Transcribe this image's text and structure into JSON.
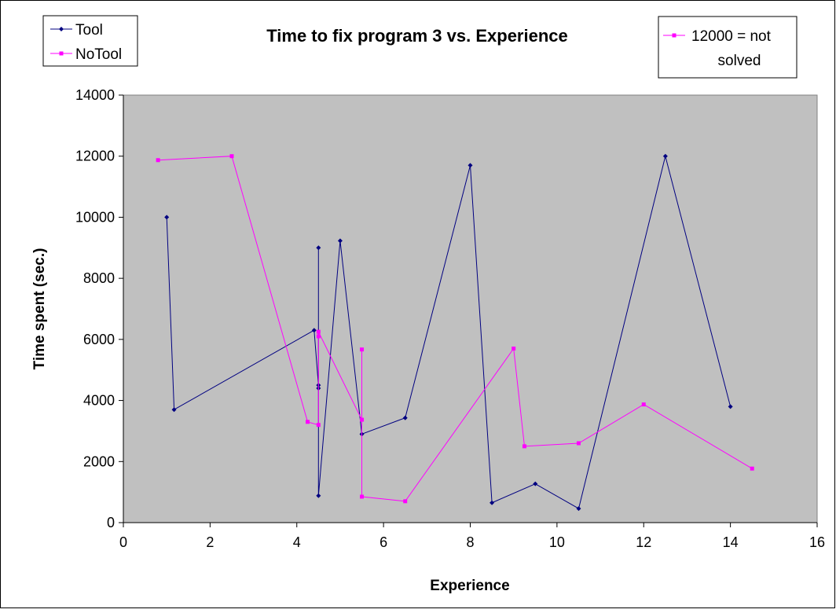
{
  "chart_data": {
    "type": "line",
    "title": "Time to fix program 3 vs. Experience",
    "xlabel": "Experience",
    "ylabel": "Time spent (sec.)",
    "xlim": [
      0,
      16
    ],
    "ylim": [
      0,
      14000
    ],
    "xticks": [
      "0",
      "2",
      "4",
      "6",
      "8",
      "10",
      "12",
      "14",
      "16"
    ],
    "yticks": [
      "0",
      "2000",
      "4000",
      "6000",
      "8000",
      "10000",
      "12000",
      "14000"
    ],
    "grid": false,
    "plot_background": "#c0c0c0",
    "legend_position": "top-left",
    "annotation": {
      "line1": "12000 = not",
      "line2": "solved",
      "position": "top-right"
    },
    "series": [
      {
        "name": "Tool",
        "color": "#000080",
        "marker": "diamond",
        "points": [
          [
            1.0,
            10000
          ],
          [
            1.17,
            3700
          ],
          [
            4.4,
            6300
          ],
          [
            4.5,
            4500
          ],
          [
            4.5,
            9000
          ],
          [
            4.5,
            4400
          ],
          [
            4.5,
            880
          ],
          [
            5.0,
            9230
          ],
          [
            5.5,
            2900
          ],
          [
            6.5,
            3430
          ],
          [
            8.0,
            11700
          ],
          [
            8.5,
            650
          ],
          [
            9.5,
            1270
          ],
          [
            10.5,
            460
          ],
          [
            12.5,
            12000
          ],
          [
            14.0,
            3800
          ]
        ]
      },
      {
        "name": "NoTool",
        "color": "#ff00ff",
        "marker": "square",
        "points": [
          [
            0.8,
            11870
          ],
          [
            2.5,
            12000
          ],
          [
            4.25,
            3300
          ],
          [
            4.5,
            3200
          ],
          [
            4.5,
            6100
          ],
          [
            4.5,
            6250
          ],
          [
            5.5,
            3370
          ],
          [
            5.5,
            5670
          ],
          [
            5.5,
            850
          ],
          [
            6.5,
            700
          ],
          [
            9.0,
            5700
          ],
          [
            9.25,
            2500
          ],
          [
            10.5,
            2600
          ],
          [
            12.0,
            3870
          ],
          [
            14.5,
            1770
          ]
        ]
      }
    ]
  }
}
